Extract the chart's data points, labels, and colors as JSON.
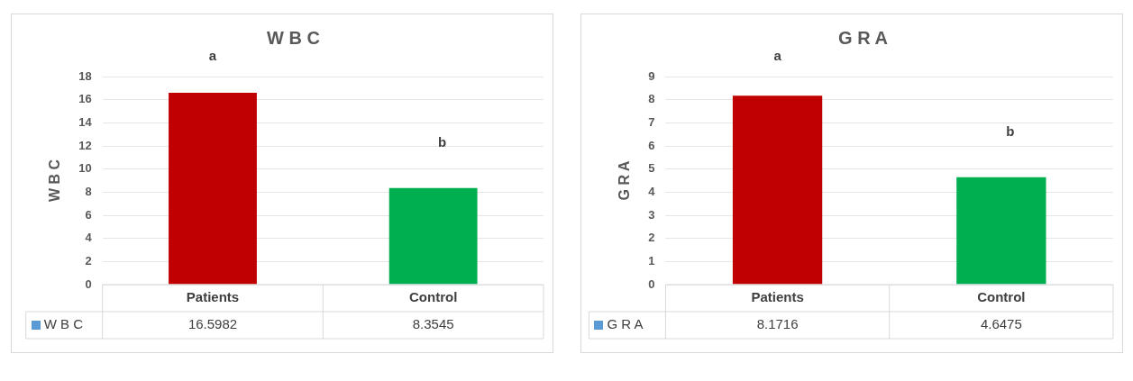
{
  "chart_data": [
    {
      "type": "bar",
      "title": "W B C",
      "ylabel": "W B C",
      "categories": [
        "Patients",
        "Control"
      ],
      "series": [
        {
          "name": "W B C",
          "color": "#5b9bd5",
          "colors": [
            "#c00000",
            "#00b050"
          ],
          "values": [
            16.5982,
            8.3545
          ]
        }
      ],
      "ylim": [
        0,
        18
      ],
      "yticks": [
        0,
        2,
        4,
        6,
        8,
        10,
        12,
        14,
        16,
        18
      ],
      "grid": "y",
      "data_labels": true,
      "annotations": [
        "a",
        "b"
      ]
    },
    {
      "type": "bar",
      "title": "G R A",
      "ylabel": "G R A",
      "categories": [
        "Patients",
        "Control"
      ],
      "series": [
        {
          "name": "G R A",
          "color": "#5b9bd5",
          "colors": [
            "#c00000",
            "#00b050"
          ],
          "values": [
            8.1716,
            4.6475
          ]
        }
      ],
      "ylim": [
        0,
        9
      ],
      "yticks": [
        0,
        1,
        2,
        3,
        4,
        5,
        6,
        7,
        8,
        9
      ],
      "grid": "y",
      "data_labels": true,
      "annotations": [
        "a",
        "b"
      ]
    }
  ]
}
